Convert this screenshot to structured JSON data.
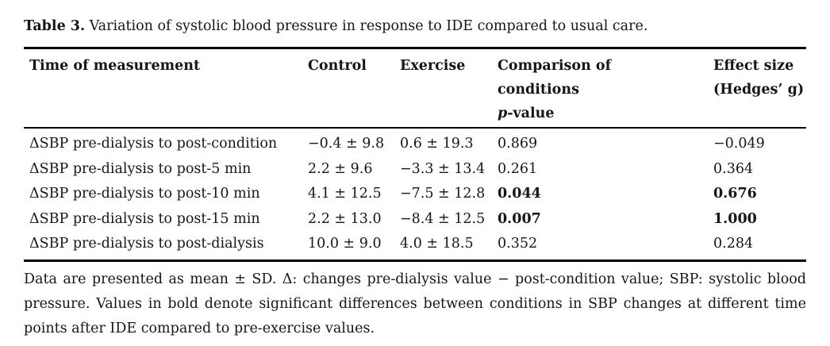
{
  "title": {
    "label": "Table 3.",
    "text": " Variation of systolic blood pressure in response to IDE compared to usual care."
  },
  "table": {
    "headers": {
      "time": "Time of measurement",
      "control": "Control",
      "exercise": "Exercise",
      "comparison_line1": "Comparison of",
      "comparison_line2": "conditions",
      "comparison_p": "p",
      "comparison_value": "-value",
      "effect_line1": "Effect size",
      "effect_line2": "(Hedges’ g)"
    },
    "rows": [
      {
        "time": "ΔSBP pre-dialysis to post-condition",
        "control": "−0.4 ± 9.8",
        "exercise": "0.6 ± 19.3",
        "p_value": "0.869",
        "effect_size": "−0.049",
        "significant": false
      },
      {
        "time": "ΔSBP pre-dialysis to post-5 min",
        "control": "2.2 ± 9.6",
        "exercise": "−3.3 ± 13.4",
        "p_value": "0.261",
        "effect_size": "0.364",
        "significant": false
      },
      {
        "time": "ΔSBP pre-dialysis to post-10 min",
        "control": "4.1 ± 12.5",
        "exercise": "−7.5 ± 12.8",
        "p_value": "0.044",
        "effect_size": "0.676",
        "significant": true
      },
      {
        "time": "ΔSBP pre-dialysis to post-15 min",
        "control": "2.2 ± 13.0",
        "exercise": "−8.4 ± 12.5",
        "p_value": "0.007",
        "effect_size": "1.000",
        "significant": true
      },
      {
        "time": "ΔSBP pre-dialysis to post-dialysis",
        "control": "10.0 ± 9.0",
        "exercise": "4.0 ± 18.5",
        "p_value": "0.352",
        "effect_size": "0.284",
        "significant": false
      }
    ]
  },
  "footnote": {
    "sentence1": "Data are presented as mean ± SD. Δ: changes pre-dialysis value − post-condition value; SBP: systolic blood pressure.",
    "sentence2": "Values in bold denote significant differences between conditions in SBP changes at different time points after IDE compared to pre-exercise values."
  }
}
